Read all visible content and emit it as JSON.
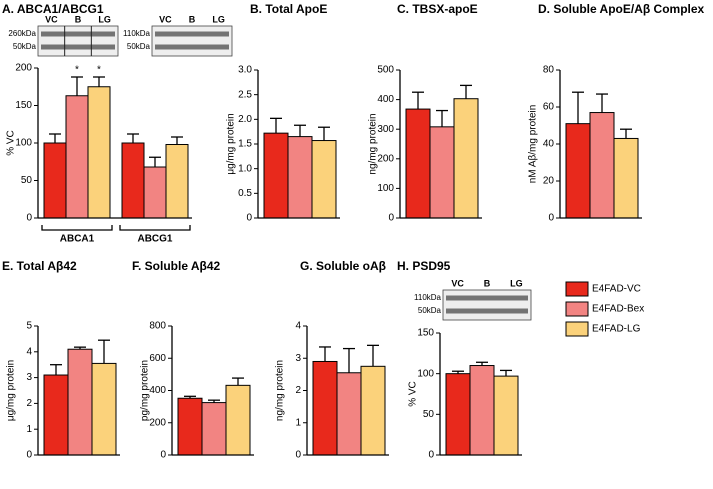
{
  "legend": [
    {
      "name": "E4FAD-VC",
      "color": "#e8291c"
    },
    {
      "name": "E4FAD-Bex",
      "color": "#f28482"
    },
    {
      "name": "E4FAD-LG",
      "color": "#fbd27b"
    }
  ],
  "chart_data": [
    {
      "type": "bar",
      "title": "A. ABCA1/ABCG1",
      "y_label": "% VC",
      "ylim": [
        0,
        200
      ],
      "yticks": [
        0,
        50,
        100,
        150,
        200
      ],
      "groups": [
        {
          "label": "ABCA1",
          "values": [
            100,
            163,
            175
          ],
          "errors": [
            12,
            25,
            13
          ]
        },
        {
          "label": "ABCG1",
          "values": [
            100,
            68,
            98
          ],
          "errors": [
            12,
            13,
            10
          ]
        }
      ],
      "annotations": [
        {
          "text": "*",
          "group": 0,
          "bar": 1
        },
        {
          "text": "*",
          "group": 0,
          "bar": 2
        }
      ],
      "blots": [
        {
          "lanes": [
            "VC",
            "B",
            "LG"
          ],
          "markers": [
            "260kDa",
            "50kDa"
          ]
        },
        {
          "lanes": [
            "VC",
            "B",
            "LG"
          ],
          "markers": [
            "110kDa",
            "50kDa"
          ]
        }
      ]
    },
    {
      "type": "bar",
      "title": "B. Total ApoE",
      "y_label": "μg/mg protein",
      "ylim": [
        0,
        3
      ],
      "yticks": [
        0,
        0.5,
        {
          "value": 1,
          "label": "1.0"
        },
        1.5,
        {
          "value": 2,
          "label": "2.0"
        },
        2.5,
        {
          "value": 3,
          "label": "3.0"
        }
      ],
      "values": [
        1.72,
        1.65,
        1.57
      ],
      "errors": [
        0.3,
        0.23,
        0.27
      ]
    },
    {
      "type": "bar",
      "title": "C. TBSX-apoE",
      "y_label": "ng/mg protein",
      "ylim": [
        0,
        500
      ],
      "yticks": [
        0,
        100,
        200,
        300,
        400,
        500
      ],
      "values": [
        368,
        308,
        403
      ],
      "errors": [
        57,
        55,
        45
      ]
    },
    {
      "type": "bar",
      "title": "D. Soluble ApoE/Aβ Complex",
      "y_label": "nM Aβ/mg protein",
      "ylim": [
        0,
        80
      ],
      "yticks": [
        0,
        20,
        40,
        60,
        80
      ],
      "values": [
        51,
        57,
        43
      ],
      "errors": [
        17,
        10,
        5
      ]
    },
    {
      "type": "bar",
      "title": "E. Total Aβ42",
      "y_label": "μg/mg protein",
      "ylim": [
        0,
        5
      ],
      "yticks": [
        0,
        1,
        2,
        3,
        4,
        5
      ],
      "values": [
        3.1,
        4.1,
        3.55
      ],
      "errors": [
        0.4,
        0.08,
        0.9
      ]
    },
    {
      "type": "bar",
      "title": "F. Soluble Aβ42",
      "y_label": "pg/mg protein",
      "ylim": [
        0,
        800
      ],
      "yticks": [
        0,
        200,
        400,
        600,
        800
      ],
      "values": [
        352,
        325,
        432
      ],
      "errors": [
        12,
        15,
        45
      ]
    },
    {
      "type": "bar",
      "title": "G. Soluble oAβ",
      "y_label": "ng/mg protein",
      "ylim": [
        0,
        4
      ],
      "yticks": [
        0,
        1,
        2,
        3,
        4
      ],
      "values": [
        2.9,
        2.55,
        2.75
      ],
      "errors": [
        0.45,
        0.75,
        0.65
      ]
    },
    {
      "type": "bar",
      "title": "H. PSD95",
      "y_label": "% VC",
      "ylim": [
        0,
        150
      ],
      "yticks": [
        0,
        50,
        100,
        150
      ],
      "values": [
        100,
        110,
        97
      ],
      "errors": [
        3,
        4,
        7
      ],
      "blots": [
        {
          "lanes": [
            "VC",
            "B",
            "LG"
          ],
          "markers": [
            "110kDa",
            "50kDa"
          ]
        }
      ]
    }
  ]
}
